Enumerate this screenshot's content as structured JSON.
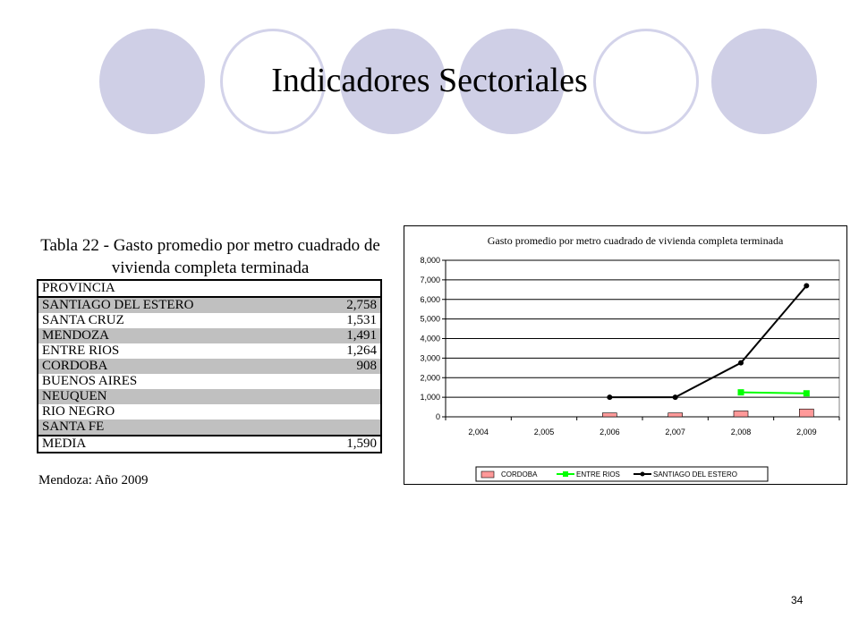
{
  "slide": {
    "title": "Indicadores Sectoriales",
    "page_number": "34"
  },
  "table": {
    "title_line1": "Tabla 22 - Gasto promedio por metro cuadrado de",
    "title_line2": "vivienda completa terminada",
    "header": "PROVINCIA",
    "rows": [
      {
        "province": "SANTIAGO DEL ESTERO",
        "value": "2,758"
      },
      {
        "province": "SANTA CRUZ",
        "value": "1,531"
      },
      {
        "province": "MENDOZA",
        "value": "1,491"
      },
      {
        "province": "ENTRE RIOS",
        "value": "1,264"
      },
      {
        "province": "CORDOBA",
        "value": "908"
      },
      {
        "province": "BUENOS AIRES",
        "value": ""
      },
      {
        "province": "NEUQUEN",
        "value": ""
      },
      {
        "province": "RIO NEGRO",
        "value": ""
      },
      {
        "province": "SANTA FE",
        "value": ""
      }
    ],
    "mean_label": "MEDIA",
    "mean_value": "1,590",
    "note": "Mendoza: Año 2009"
  },
  "chart_data": {
    "type": "bar",
    "title": "Gasto promedio por metro cuadrado de vivienda completa terminada",
    "categories": [
      "2,004",
      "2,005",
      "2,006",
      "2,007",
      "2,008",
      "2,009"
    ],
    "ylim": [
      0,
      8000
    ],
    "yticks": [
      "0",
      "1,000",
      "2,000",
      "3,000",
      "4,000",
      "5,000",
      "6,000",
      "7,000",
      "8,000"
    ],
    "grid": true,
    "legend_position": "bottom",
    "series": [
      {
        "name": "CORDOBA",
        "kind": "bar",
        "color": "#ff9999",
        "values": [
          null,
          null,
          200,
          200,
          300,
          400
        ]
      },
      {
        "name": "ENTRE RIOS",
        "kind": "line",
        "color": "#00ff00",
        "values": [
          null,
          null,
          null,
          null,
          1250,
          1200
        ]
      },
      {
        "name": "SANTIAGO DEL ESTERO",
        "kind": "line",
        "color": "#000000",
        "values": [
          null,
          null,
          1000,
          1000,
          2758,
          6700
        ]
      }
    ]
  }
}
